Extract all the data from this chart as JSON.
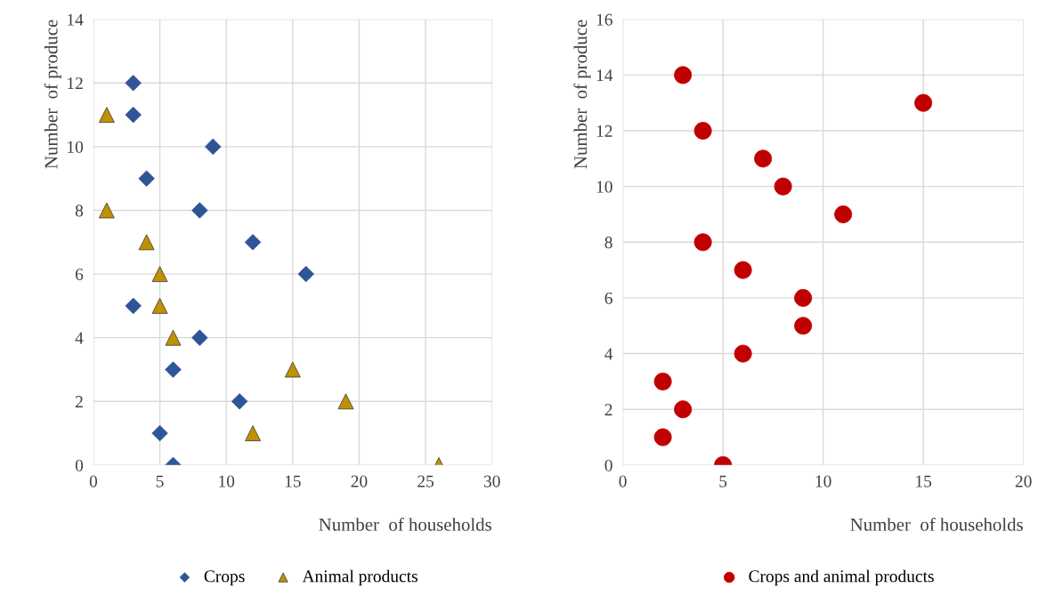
{
  "chart_data": [
    {
      "type": "scatter",
      "xlabel": "Number  of households",
      "ylabel": "Number  of produce",
      "xlim": [
        0,
        30
      ],
      "xticks": [
        0,
        5,
        10,
        15,
        20,
        25,
        30
      ],
      "ylim": [
        0,
        14
      ],
      "yticks": [
        0,
        2,
        4,
        6,
        8,
        10,
        12,
        14
      ],
      "grid": true,
      "legend": "bottom",
      "series": [
        {
          "name": "Crops",
          "color": "#2f5597",
          "marker": "diamond",
          "x": [
            3,
            3,
            9,
            4,
            8,
            12,
            16,
            3,
            8,
            6,
            11,
            5,
            6
          ],
          "values": [
            12,
            11,
            10,
            9,
            8,
            7,
            6,
            5,
            4,
            3,
            2,
            1,
            0
          ]
        },
        {
          "name": "Animal products",
          "color": "#bf9000",
          "marker": "triangle",
          "x": [
            1,
            1,
            4,
            5,
            5,
            6,
            15,
            19,
            12,
            26
          ],
          "values": [
            11,
            8,
            7,
            6,
            5,
            4,
            3,
            2,
            1,
            0
          ]
        }
      ]
    },
    {
      "type": "scatter",
      "xlabel": "Number  of households",
      "ylabel": "Number  of produce",
      "xlim": [
        0,
        20
      ],
      "xticks": [
        0,
        5,
        10,
        15,
        20
      ],
      "ylim": [
        0,
        16
      ],
      "yticks": [
        0,
        2,
        4,
        6,
        8,
        10,
        12,
        14,
        16
      ],
      "grid": true,
      "legend": "bottom",
      "series": [
        {
          "name": "Crops and animal products",
          "color": "#c00000",
          "marker": "circle",
          "x": [
            3,
            15,
            4,
            7,
            8,
            11,
            4,
            6,
            9,
            9,
            6,
            2,
            3,
            2,
            5
          ],
          "values": [
            14,
            13,
            12,
            11,
            10,
            9,
            8,
            7,
            6,
            5,
            4,
            3,
            2,
            1,
            0
          ]
        }
      ]
    }
  ]
}
